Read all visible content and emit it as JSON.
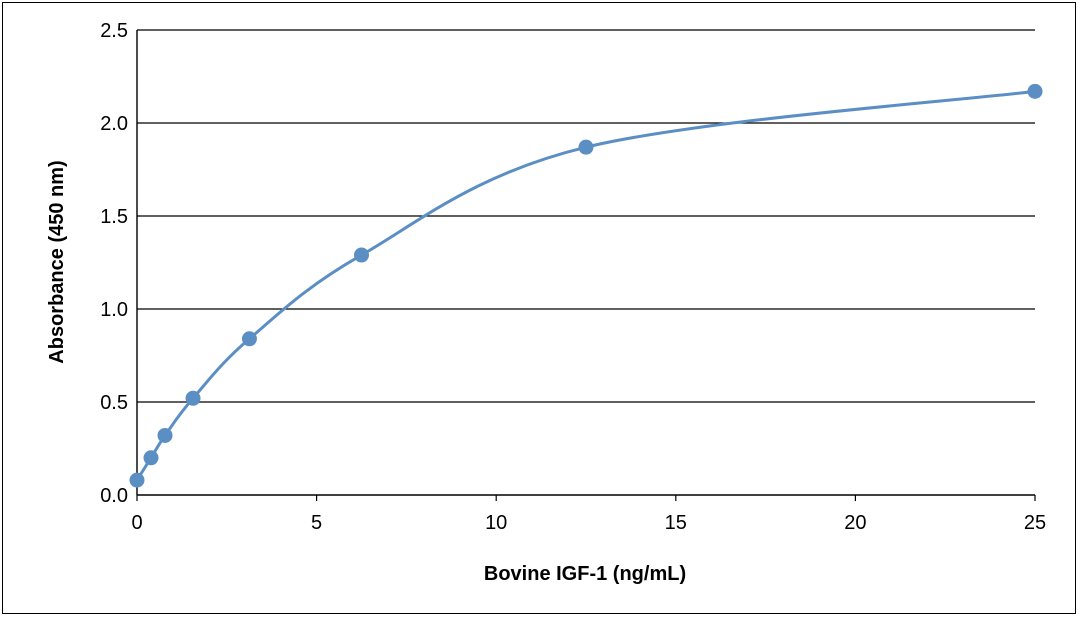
{
  "chart_data": {
    "type": "scatter",
    "title": "",
    "xlabel": "Bovine IGF-1 (ng/mL)",
    "ylabel": "Absorbance (450 nm)",
    "xlim": [
      0,
      25
    ],
    "ylim": [
      0,
      2.5
    ],
    "x_ticks": [
      "0",
      "5",
      "10",
      "15",
      "20",
      "25"
    ],
    "y_ticks": [
      "0.0",
      "0.5",
      "1.0",
      "1.5",
      "2.0",
      "2.5"
    ],
    "grid": "horizontal",
    "legend": "none",
    "series": [
      {
        "color": "#5b8fc4",
        "line": "smooth",
        "x": [
          0,
          0.39,
          0.78,
          1.56,
          3.13,
          6.25,
          12.5,
          25
        ],
        "y": [
          0.08,
          0.2,
          0.32,
          0.52,
          0.84,
          1.29,
          1.87,
          2.17
        ]
      }
    ]
  }
}
